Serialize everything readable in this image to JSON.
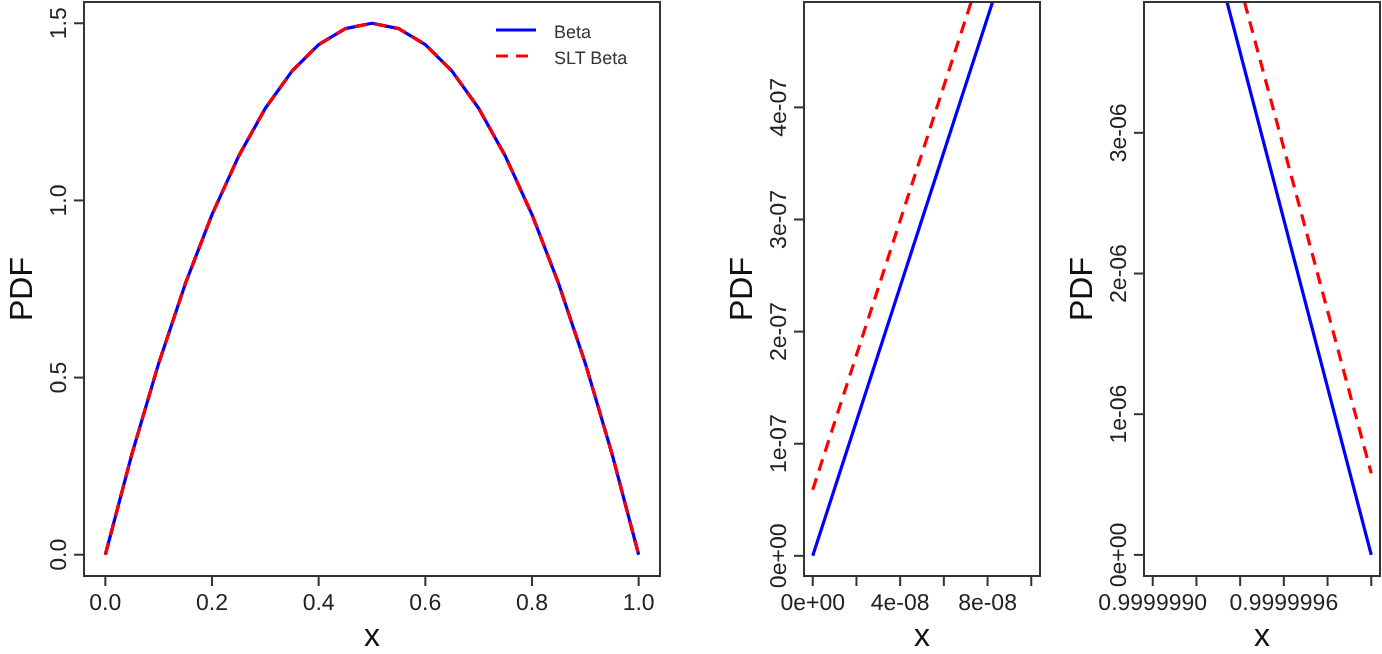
{
  "chart_data": [
    {
      "type": "line",
      "xlabel": "x",
      "ylabel": "PDF",
      "xlim": [
        -0.04,
        1.04
      ],
      "ylim": [
        -0.06,
        1.56
      ],
      "xticks": [
        {
          "value": 0,
          "label": "0.0"
        },
        {
          "value": 0.2,
          "label": "0.2"
        },
        {
          "value": 0.4,
          "label": "0.4"
        },
        {
          "value": 0.6,
          "label": "0.6"
        },
        {
          "value": 0.8,
          "label": "0.8"
        },
        {
          "value": 1,
          "label": "1.0"
        }
      ],
      "yticks": [
        {
          "value": 0,
          "label": "0.0"
        },
        {
          "value": 0.5,
          "label": "0.5"
        },
        {
          "value": 1,
          "label": "1.0"
        },
        {
          "value": 1.5,
          "label": "1.5"
        }
      ],
      "legend": "top right",
      "grid": false,
      "x": [
        0,
        0.05,
        0.1,
        0.15,
        0.2,
        0.25,
        0.3,
        0.35,
        0.4,
        0.45,
        0.5,
        0.55,
        0.6,
        0.65,
        0.7,
        0.75,
        0.8,
        0.85,
        0.9,
        0.95,
        1
      ],
      "series": [
        {
          "name": "Beta",
          "color": "#0000ff",
          "line_style": "solid",
          "values": [
            0,
            0.285,
            0.54,
            0.765,
            0.96,
            1.125,
            1.26,
            1.365,
            1.44,
            1.485,
            1.5,
            1.485,
            1.44,
            1.365,
            1.26,
            1.125,
            0.96,
            0.765,
            0.54,
            0.285,
            0
          ]
        },
        {
          "name": "SLT Beta",
          "color": "#ff0000",
          "line_style": "dashed",
          "values": [
            0,
            0.285,
            0.54,
            0.765,
            0.96,
            1.125,
            1.26,
            1.365,
            1.44,
            1.485,
            1.5,
            1.485,
            1.44,
            1.365,
            1.26,
            1.125,
            0.96,
            0.765,
            0.54,
            0.285,
            0
          ]
        }
      ]
    },
    {
      "type": "line",
      "xlabel": "x",
      "ylabel": "PDF",
      "xlim": [
        -4e-09,
        1.04e-07
      ],
      "ylim": [
        -1.8e-08,
        4.94e-07
      ],
      "xticks": [
        {
          "value": 0,
          "label": "0e+00"
        },
        {
          "value": 2e-08,
          "label": null
        },
        {
          "value": 4e-08,
          "label": "4e-08"
        },
        {
          "value": 6e-08,
          "label": null
        },
        {
          "value": 8e-08,
          "label": "8e-08"
        },
        {
          "value": 1e-07,
          "label": null
        }
      ],
      "yticks": [
        {
          "value": 0,
          "label": "0e+00"
        },
        {
          "value": 1e-07,
          "label": "1e-07"
        },
        {
          "value": 2e-07,
          "label": "2e-07"
        },
        {
          "value": 3e-07,
          "label": "3e-07"
        },
        {
          "value": 4e-07,
          "label": "4e-07"
        }
      ],
      "grid": false,
      "series": [
        {
          "color": "#0000ff",
          "line_style": "solid",
          "x": [
            0,
            8.23e-08
          ],
          "values": [
            0,
            4.94e-07
          ]
        },
        {
          "color": "#ff0000",
          "line_style": "dashed",
          "x": [
            0,
            7.25e-08
          ],
          "values": [
            5.9e-08,
            4.94e-07
          ]
        }
      ]
    },
    {
      "type": "line",
      "xlabel": "x",
      "ylabel": "PDF",
      "xlim": [
        0.99999896,
        1.00000004
      ],
      "ylim": [
        -1.5e-07,
        3.93e-06
      ],
      "xticks": [
        {
          "value": 0.999999,
          "label": "0.9999990"
        },
        {
          "value": 0.9999992,
          "label": null
        },
        {
          "value": 0.9999994,
          "label": null
        },
        {
          "value": 0.9999996,
          "label": "0.9999996"
        },
        {
          "value": 0.9999998,
          "label": null
        },
        {
          "value": 1,
          "label": null
        }
      ],
      "yticks": [
        {
          "value": 0,
          "label": "0e+00"
        },
        {
          "value": 1e-06,
          "label": "1e-06"
        },
        {
          "value": 2e-06,
          "label": "2e-06"
        },
        {
          "value": 3e-06,
          "label": "3e-06"
        }
      ],
      "grid": false,
      "series": [
        {
          "color": "#0000ff",
          "line_style": "solid",
          "x": [
            0.99999934,
            1
          ],
          "values": [
            3.93e-06,
            0
          ]
        },
        {
          "color": "#ff0000",
          "line_style": "dashed",
          "x": [
            0.99999942,
            1
          ],
          "values": [
            3.93e-06,
            5.8e-07
          ]
        }
      ]
    }
  ]
}
